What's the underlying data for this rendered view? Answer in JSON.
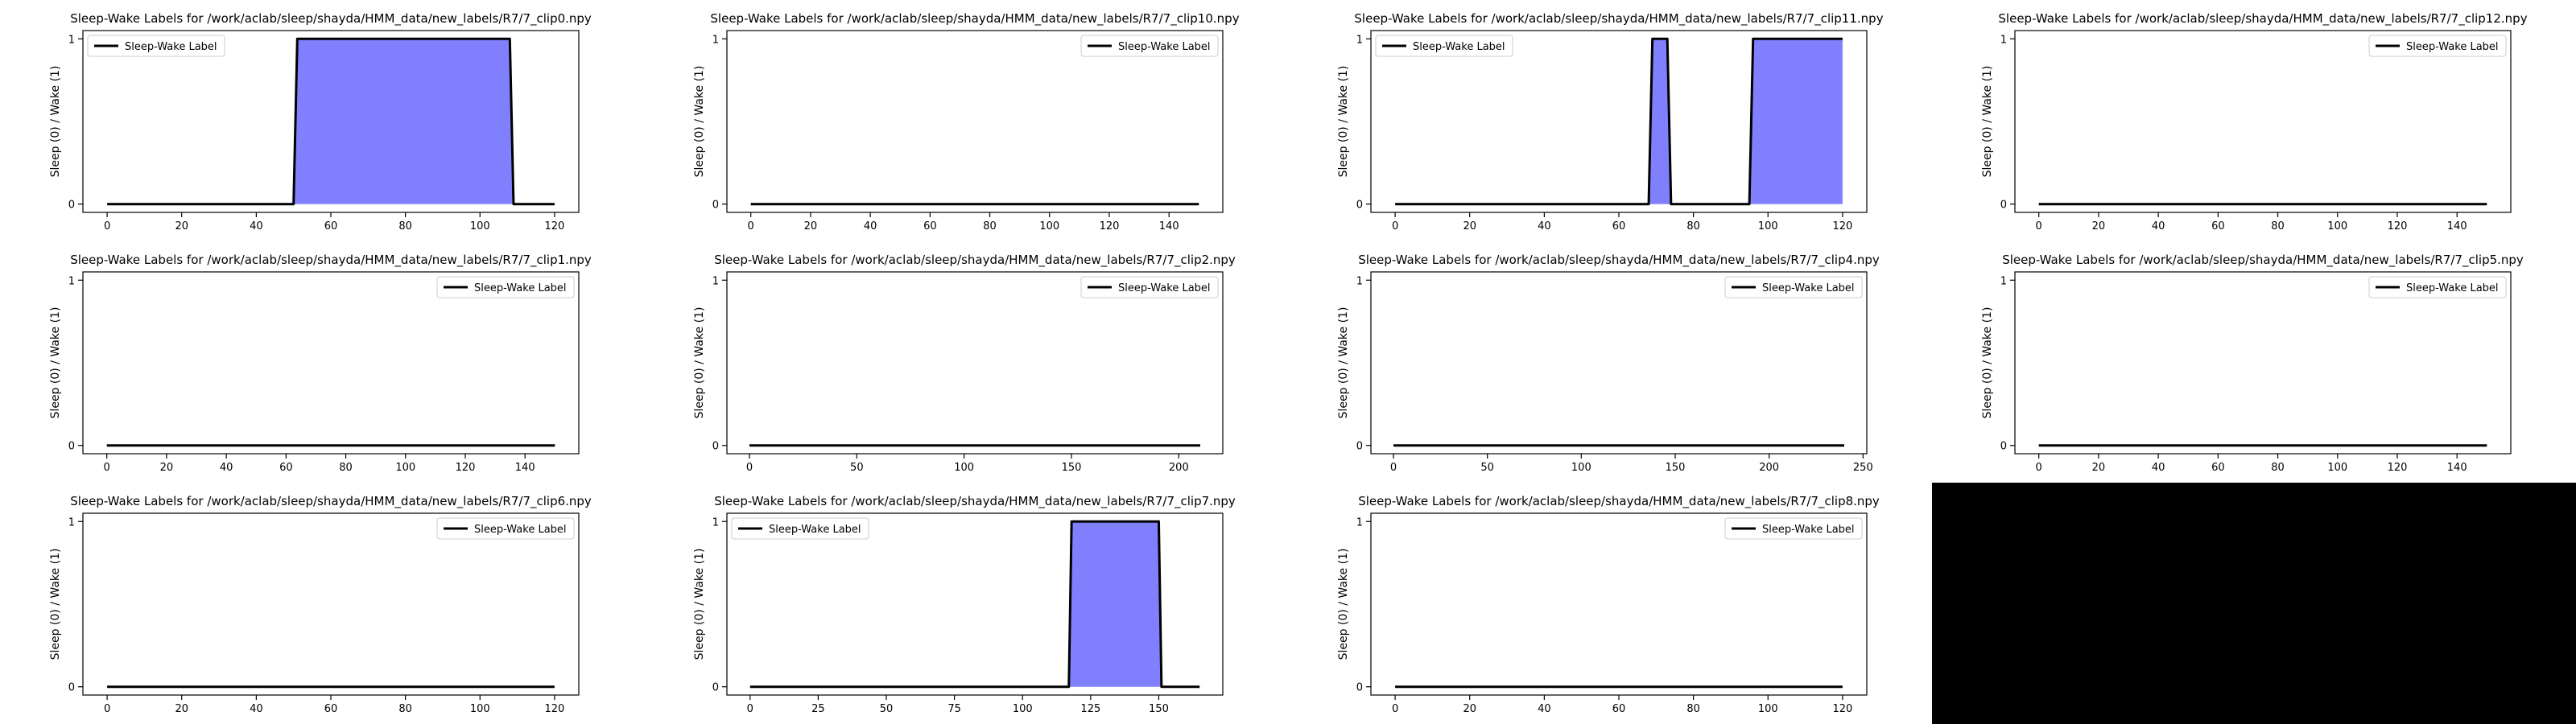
{
  "figure": {
    "empty_panel_color": "#000000"
  },
  "chart_data": [
    {
      "type": "area",
      "title": "Sleep-Wake Labels for /work/aclab/sleep/shayda/HMM_data/new_labels/R7/7_clip0.npy",
      "ylabel": "Sleep (0) / Wake (1)",
      "xlabel": "",
      "legend": {
        "label": "Sleep-Wake Label",
        "placement": "top-left"
      },
      "xlim": [
        -6.5,
        126.5
      ],
      "ylim": [
        -0.05,
        1.05
      ],
      "xticks": [
        0,
        20,
        40,
        60,
        80,
        100,
        120
      ],
      "yticks": [
        0,
        1
      ],
      "points": [
        [
          0,
          0
        ],
        [
          50,
          0
        ],
        [
          51,
          1
        ],
        [
          108,
          1
        ],
        [
          109,
          0
        ],
        [
          120,
          0
        ]
      ],
      "line_color": "#000000",
      "fill_color": "#8080ff"
    },
    {
      "type": "area",
      "title": "Sleep-Wake Labels for /work/aclab/sleep/shayda/HMM_data/new_labels/R7/7_clip10.npy",
      "ylabel": "Sleep (0) / Wake (1)",
      "xlabel": "",
      "legend": {
        "label": "Sleep-Wake Label",
        "placement": "top-right"
      },
      "xlim": [
        -8,
        158
      ],
      "ylim": [
        -0.05,
        1.05
      ],
      "xticks": [
        0,
        20,
        40,
        60,
        80,
        100,
        120,
        140
      ],
      "yticks": [
        0,
        1
      ],
      "points": [
        [
          0,
          0
        ],
        [
          150,
          0
        ]
      ],
      "line_color": "#000000",
      "fill_color": "#8080ff"
    },
    {
      "type": "area",
      "title": "Sleep-Wake Labels for /work/aclab/sleep/shayda/HMM_data/new_labels/R7/7_clip11.npy",
      "ylabel": "Sleep (0) / Wake (1)",
      "xlabel": "",
      "legend": {
        "label": "Sleep-Wake Label",
        "placement": "top-left"
      },
      "xlim": [
        -6.5,
        126.5
      ],
      "ylim": [
        -0.05,
        1.05
      ],
      "xticks": [
        0,
        20,
        40,
        60,
        80,
        100,
        120
      ],
      "yticks": [
        0,
        1
      ],
      "points": [
        [
          0,
          0
        ],
        [
          68,
          0
        ],
        [
          69,
          1
        ],
        [
          73,
          1
        ],
        [
          74,
          0
        ],
        [
          95,
          0
        ],
        [
          96,
          1
        ],
        [
          120,
          1
        ]
      ],
      "line_color": "#000000",
      "fill_color": "#8080ff"
    },
    {
      "type": "area",
      "title": "Sleep-Wake Labels for /work/aclab/sleep/shayda/HMM_data/new_labels/R7/7_clip12.npy",
      "ylabel": "Sleep (0) / Wake (1)",
      "xlabel": "",
      "legend": {
        "label": "Sleep-Wake Label",
        "placement": "top-right"
      },
      "xlim": [
        -8,
        158
      ],
      "ylim": [
        -0.05,
        1.05
      ],
      "xticks": [
        0,
        20,
        40,
        60,
        80,
        100,
        120,
        140
      ],
      "yticks": [
        0,
        1
      ],
      "points": [
        [
          0,
          0
        ],
        [
          150,
          0
        ]
      ],
      "line_color": "#000000",
      "fill_color": "#8080ff"
    },
    {
      "type": "area",
      "title": "Sleep-Wake Labels for /work/aclab/sleep/shayda/HMM_data/new_labels/R7/7_clip1.npy",
      "ylabel": "Sleep (0) / Wake (1)",
      "xlabel": "",
      "legend": {
        "label": "Sleep-Wake Label",
        "placement": "top-right"
      },
      "xlim": [
        -8,
        158
      ],
      "ylim": [
        -0.05,
        1.05
      ],
      "xticks": [
        0,
        20,
        40,
        60,
        80,
        100,
        120,
        140
      ],
      "yticks": [
        0,
        1
      ],
      "points": [
        [
          0,
          0
        ],
        [
          150,
          0
        ]
      ],
      "line_color": "#000000",
      "fill_color": "#8080ff"
    },
    {
      "type": "area",
      "title": "Sleep-Wake Labels for /work/aclab/sleep/shayda/HMM_data/new_labels/R7/7_clip2.npy",
      "ylabel": "Sleep (0) / Wake (1)",
      "xlabel": "",
      "legend": {
        "label": "Sleep-Wake Label",
        "placement": "top-right"
      },
      "xlim": [
        -10.5,
        220.5
      ],
      "ylim": [
        -0.05,
        1.05
      ],
      "xticks": [
        0,
        50,
        100,
        150,
        200
      ],
      "yticks": [
        0,
        1
      ],
      "points": [
        [
          0,
          0
        ],
        [
          210,
          0
        ]
      ],
      "line_color": "#000000",
      "fill_color": "#8080ff"
    },
    {
      "type": "area",
      "title": "Sleep-Wake Labels for /work/aclab/sleep/shayda/HMM_data/new_labels/R7/7_clip4.npy",
      "ylabel": "Sleep (0) / Wake (1)",
      "xlabel": "",
      "legend": {
        "label": "Sleep-Wake Label",
        "placement": "top-right"
      },
      "xlim": [
        -12,
        252
      ],
      "ylim": [
        -0.05,
        1.05
      ],
      "xticks": [
        0,
        50,
        100,
        150,
        200,
        250
      ],
      "yticks": [
        0,
        1
      ],
      "points": [
        [
          0,
          0
        ],
        [
          240,
          0
        ]
      ],
      "line_color": "#000000",
      "fill_color": "#8080ff"
    },
    {
      "type": "area",
      "title": "Sleep-Wake Labels for /work/aclab/sleep/shayda/HMM_data/new_labels/R7/7_clip5.npy",
      "ylabel": "Sleep (0) / Wake (1)",
      "xlabel": "",
      "legend": {
        "label": "Sleep-Wake Label",
        "placement": "top-right"
      },
      "xlim": [
        -8,
        158
      ],
      "ylim": [
        -0.05,
        1.05
      ],
      "xticks": [
        0,
        20,
        40,
        60,
        80,
        100,
        120,
        140
      ],
      "yticks": [
        0,
        1
      ],
      "points": [
        [
          0,
          0
        ],
        [
          150,
          0
        ]
      ],
      "line_color": "#000000",
      "fill_color": "#8080ff"
    },
    {
      "type": "area",
      "title": "Sleep-Wake Labels for /work/aclab/sleep/shayda/HMM_data/new_labels/R7/7_clip6.npy",
      "ylabel": "Sleep (0) / Wake (1)",
      "xlabel": "",
      "legend": {
        "label": "Sleep-Wake Label",
        "placement": "top-right"
      },
      "xlim": [
        -6.5,
        126.5
      ],
      "ylim": [
        -0.05,
        1.05
      ],
      "xticks": [
        0,
        20,
        40,
        60,
        80,
        100,
        120
      ],
      "yticks": [
        0,
        1
      ],
      "points": [
        [
          0,
          0
        ],
        [
          120,
          0
        ]
      ],
      "line_color": "#000000",
      "fill_color": "#8080ff"
    },
    {
      "type": "area",
      "title": "Sleep-Wake Labels for /work/aclab/sleep/shayda/HMM_data/new_labels/R7/7_clip7.npy",
      "ylabel": "Sleep (0) / Wake (1)",
      "xlabel": "",
      "legend": {
        "label": "Sleep-Wake Label",
        "placement": "top-left"
      },
      "xlim": [
        -8.5,
        173.5
      ],
      "ylim": [
        -0.05,
        1.05
      ],
      "xticks": [
        0,
        25,
        50,
        75,
        100,
        125,
        150
      ],
      "yticks": [
        0,
        1
      ],
      "points": [
        [
          0,
          0
        ],
        [
          117,
          0
        ],
        [
          118,
          1
        ],
        [
          150,
          1
        ],
        [
          151,
          0
        ],
        [
          165,
          0
        ]
      ],
      "line_color": "#000000",
      "fill_color": "#8080ff"
    },
    {
      "type": "area",
      "title": "Sleep-Wake Labels for /work/aclab/sleep/shayda/HMM_data/new_labels/R7/7_clip8.npy",
      "ylabel": "Sleep (0) / Wake (1)",
      "xlabel": "",
      "legend": {
        "label": "Sleep-Wake Label",
        "placement": "top-right"
      },
      "xlim": [
        -6.5,
        126.5
      ],
      "ylim": [
        -0.05,
        1.05
      ],
      "xticks": [
        0,
        20,
        40,
        60,
        80,
        100,
        120
      ],
      "yticks": [
        0,
        1
      ],
      "points": [
        [
          0,
          0
        ],
        [
          120,
          0
        ]
      ],
      "line_color": "#000000",
      "fill_color": "#8080ff"
    }
  ]
}
